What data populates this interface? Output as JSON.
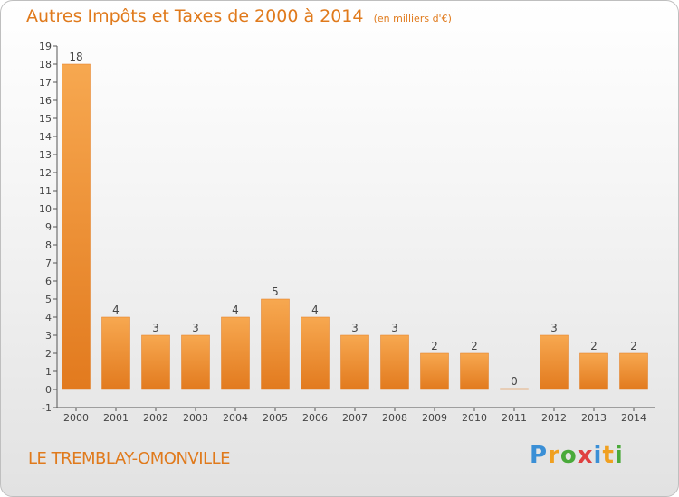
{
  "title": "Autres Impôts et Taxes de 2000 à 2014",
  "subtitle": "(en milliers d'€)",
  "town": "LE TREMBLAY-OMONVILLE",
  "logo": {
    "letters": [
      "P",
      "r",
      "o",
      "x",
      "i",
      "t",
      "i"
    ],
    "colors": [
      "#3a8fd6",
      "#f0a020",
      "#4aaa3a",
      "#e04040",
      "#3a8fd6",
      "#f0a020",
      "#4aaa3a"
    ]
  },
  "colors": {
    "bar_light": "#f7a850",
    "bar_dark": "#e27a1e",
    "text_orange": "#e07a1c",
    "axis": "#555555"
  },
  "chart_data": {
    "type": "bar",
    "categories": [
      "2000",
      "2001",
      "2002",
      "2003",
      "2004",
      "2005",
      "2006",
      "2007",
      "2008",
      "2009",
      "2010",
      "2011",
      "2012",
      "2013",
      "2014"
    ],
    "values": [
      18,
      4,
      3,
      3,
      4,
      5,
      4,
      3,
      3,
      2,
      2,
      0,
      3,
      2,
      2
    ],
    "data_labels": [
      "18",
      "4",
      "3",
      "3",
      "4",
      "5",
      "4",
      "3",
      "3",
      "2",
      "2",
      "0",
      "3",
      "2",
      "2"
    ],
    "yticks": [
      "-1",
      "0",
      "1",
      "2",
      "3",
      "4",
      "5",
      "6",
      "7",
      "8",
      "9",
      "10",
      "11",
      "12",
      "13",
      "14",
      "15",
      "16",
      "17",
      "18",
      "19"
    ],
    "ylim": [
      -1,
      19
    ],
    "grid": false,
    "legend": "none"
  }
}
